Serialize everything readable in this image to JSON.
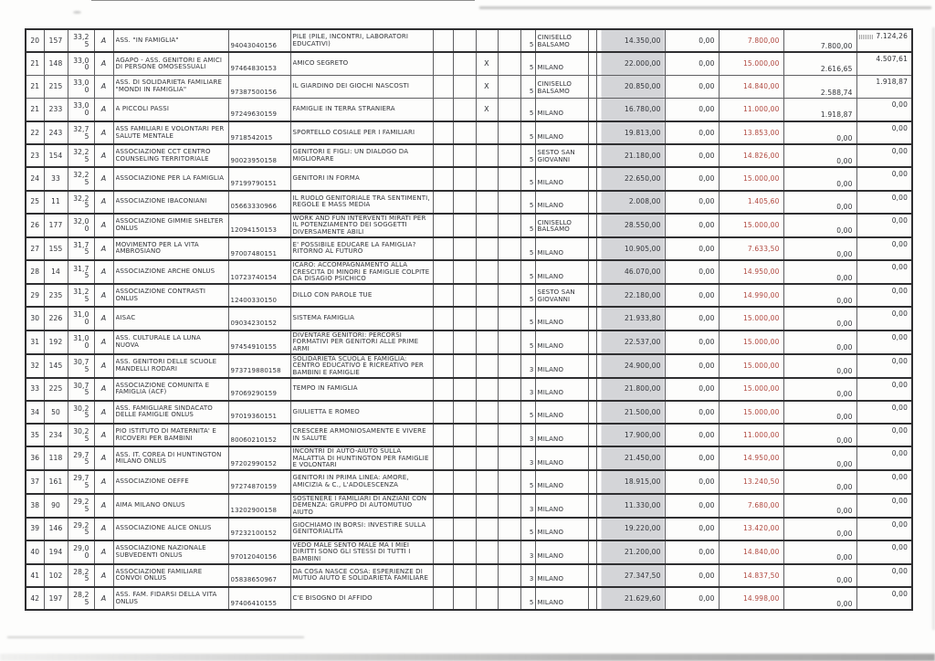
{
  "colors": {
    "grey_fill": "#d4d5d8",
    "red_text": "#b0483f",
    "border": "#5f5f62",
    "thick_border": "#2f2f31",
    "ink": "#2f3136"
  },
  "table": {
    "columns": [
      "rank",
      "id",
      "score",
      "flag",
      "organizzazione",
      "codice_fiscale",
      "progetto",
      "col1",
      "col2",
      "x",
      "col4",
      "n",
      "comune",
      "spacer",
      "importo_1",
      "importo_2",
      "importo_3",
      "importo_4",
      "importo_5"
    ],
    "rows": [
      {
        "rank": "20",
        "id": "157",
        "score": "33,25",
        "flag": "A",
        "org": "ASS. \"IN FAMIGLIA\"",
        "fiscal": "94043040156",
        "project": "PILE (PILE, INCONTRI, LABORATORI EDUCATIVI)",
        "x_mark": "",
        "num": "5",
        "city": "CINISELLO BALSAMO",
        "a_req": "14.350,00",
        "a_zero": "0,00",
        "a_grant": "7.800,00",
        "a_paid": "7.800,00",
        "a_final": "7.124,26",
        "group_start": true,
        "stamp": true
      },
      {
        "rank": "21",
        "id": "148",
        "score": "33,00",
        "flag": "A",
        "org": "AGAPO - ASS. GENITORI E AMICI DI PERSONE OMOSESSUALI",
        "fiscal": "97464830153",
        "project": "AMICO SEGRETO",
        "x_mark": "X",
        "num": "5",
        "city": "MILANO",
        "a_req": "22.000,00",
        "a_zero": "0,00",
        "a_grant": "15.000,00",
        "a_paid": "2.616,65",
        "a_final": "4.507,61",
        "group_start": true,
        "stamp": false
      },
      {
        "rank": "21",
        "id": "215",
        "score": "33,00",
        "flag": "A",
        "org": "ASS. DI SOLIDARIETÀ FAMILIARE \"MONDI IN FAMIGLIA\"",
        "fiscal": "97387500156",
        "project": "IL GIARDINO DEI GIOCHI NASCOSTI",
        "x_mark": "X",
        "num": "5",
        "city": "CINISELLO BALSAMO",
        "a_req": "20.850,00",
        "a_zero": "0,00",
        "a_grant": "14.840,00",
        "a_paid": "2.588,74",
        "a_final": "1.918,87",
        "group_start": false,
        "stamp": false
      },
      {
        "rank": "21",
        "id": "233",
        "score": "33,00",
        "flag": "A",
        "org": "A PICCOLI PASSI",
        "fiscal": "97249630159",
        "project": "FAMIGLIE IN TERRA STRANIERA",
        "x_mark": "X",
        "num": "5",
        "city": "MILANO",
        "a_req": "16.780,00",
        "a_zero": "0,00",
        "a_grant": "11.000,00",
        "a_paid": "1.918,87",
        "a_final": "0,00",
        "group_start": false,
        "stamp": false
      },
      {
        "rank": "22",
        "id": "243",
        "score": "32,75",
        "flag": "A",
        "org": "ASS FAMILIARI E VOLONTARI PER SALUTE MENTALE",
        "fiscal": "9718542015",
        "project": "SPORTELLO COSIALE PER I FAMILIARI",
        "x_mark": "",
        "num": "5",
        "city": "MILANO",
        "a_req": "19.813,00",
        "a_zero": "0,00",
        "a_grant": "13.853,00",
        "a_paid": "0,00",
        "a_final": "0,00",
        "group_start": true,
        "stamp": false
      },
      {
        "rank": "23",
        "id": "154",
        "score": "32,25",
        "flag": "A",
        "org": "ASSOCIAZIONE CCT CENTRO COUNSELING TERRITORIALE",
        "fiscal": "90023950158",
        "project": "GENITORI E FIGLI: UN DIALOGO DA MIGLIORARE",
        "x_mark": "",
        "num": "5",
        "city": "SESTO SAN GIOVANNI",
        "a_req": "21.180,00",
        "a_zero": "0,00",
        "a_grant": "14.826,00",
        "a_paid": "0,00",
        "a_final": "0,00",
        "group_start": true,
        "stamp": false
      },
      {
        "rank": "24",
        "id": "33",
        "score": "32,25",
        "flag": "A",
        "org": "ASSOCIAZIONE PER LA FAMIGLIA",
        "fiscal": "97199790151",
        "project": "GENITORI IN FORMA",
        "x_mark": "",
        "num": "5",
        "city": "MILANO",
        "a_req": "22.650,00",
        "a_zero": "0,00",
        "a_grant": "15.000,00",
        "a_paid": "0,00",
        "a_final": "0,00",
        "group_start": true,
        "stamp": false
      },
      {
        "rank": "25",
        "id": "11",
        "score": "32,25",
        "flag": "A",
        "org": "ASSOCIAZIONE IBACONIANI",
        "fiscal": "05663330966",
        "project": "IL RUOLO GENITORIALE TRA SENTIMENTI, REGOLE E MASS MEDIA",
        "x_mark": "",
        "num": "5",
        "city": "MILANO",
        "a_req": "2.008,00",
        "a_zero": "0,00",
        "a_grant": "1.405,60",
        "a_paid": "0,00",
        "a_final": "0,00",
        "group_start": true,
        "stamp": false
      },
      {
        "rank": "26",
        "id": "177",
        "score": "32,00",
        "flag": "A",
        "org": "ASSOCIAZIONE GIMMIE SHELTER ONLUS",
        "fiscal": "12094150153",
        "project": "WORK AND FUN INTERVENTI MIRATI PER IL POTENZIAMENTO DEI SOGGETTI DIVERSAMENTE ABILI",
        "x_mark": "",
        "num": "5",
        "city": "CINISELLO BALSAMO",
        "a_req": "28.550,00",
        "a_zero": "0,00",
        "a_grant": "15.000,00",
        "a_paid": "0,00",
        "a_final": "0,00",
        "group_start": true,
        "stamp": false
      },
      {
        "rank": "27",
        "id": "155",
        "score": "31,75",
        "flag": "A",
        "org": "MOVIMENTO PER LA VITA AMBROSIANO",
        "fiscal": "97007480151",
        "project": "E' POSSIBILE EDUCARE LA FAMIGLIA? RITORNO AL FUTURO",
        "x_mark": "",
        "num": "5",
        "city": "MILANO",
        "a_req": "10.905,00",
        "a_zero": "0,00",
        "a_grant": "7.633,50",
        "a_paid": "0,00",
        "a_final": "0,00",
        "group_start": true,
        "stamp": false
      },
      {
        "rank": "28",
        "id": "14",
        "score": "31,75",
        "flag": "A",
        "org": "ASSOCIAZIONE ARCHÈ ONLUS",
        "fiscal": "10723740154",
        "project": "ICARO: ACCOMPAGNAMENTO ALLA CRESCITA DI MINORI E FAMIGLIE COLPITE DA DISAGIO PSICHICO",
        "x_mark": "",
        "num": "5",
        "city": "MILANO",
        "a_req": "46.070,00",
        "a_zero": "0,00",
        "a_grant": "14.950,00",
        "a_paid": "0,00",
        "a_final": "0,00",
        "group_start": true,
        "stamp": false
      },
      {
        "rank": "29",
        "id": "235",
        "score": "31,25",
        "flag": "A",
        "org": "ASSOCIAZIONE CONTRASTI ONLUS",
        "fiscal": "12400330150",
        "project": "DILLO CON PAROLE TUE",
        "x_mark": "",
        "num": "5",
        "city": "SESTO SAN GIOVANNI",
        "a_req": "22.180,00",
        "a_zero": "0,00",
        "a_grant": "14.990,00",
        "a_paid": "0,00",
        "a_final": "0,00",
        "group_start": true,
        "stamp": false
      },
      {
        "rank": "30",
        "id": "226",
        "score": "31,00",
        "flag": "A",
        "org": "AISAC",
        "fiscal": "09034230152",
        "project": "SISTEMA FAMIGLIA",
        "x_mark": "",
        "num": "5",
        "city": "MILANO",
        "a_req": "21.933,80",
        "a_zero": "0,00",
        "a_grant": "15.000,00",
        "a_paid": "0,00",
        "a_final": "0,00",
        "group_start": true,
        "stamp": false
      },
      {
        "rank": "31",
        "id": "192",
        "score": "31,00",
        "flag": "A",
        "org": "ASS. CULTURALE LA LUNA NUOVA",
        "fiscal": "97454910155",
        "project": "DIVENTARE GENITORI: PERCORSI FORMATIVI PER GENITORI ALLE PRIME ARMI",
        "x_mark": "",
        "num": "5",
        "city": "MILANO",
        "a_req": "22.537,00",
        "a_zero": "0,00",
        "a_grant": "15.000,00",
        "a_paid": "0,00",
        "a_final": "0,00",
        "group_start": true,
        "stamp": false
      },
      {
        "rank": "32",
        "id": "145",
        "score": "30,75",
        "flag": "A",
        "org": "ASS. GENITORI DELLE SCUOLE MANDELLI RODARI",
        "fiscal": "973719880158",
        "project": "SOLIDARIETÀ SCUOLA E FAMIGLIA: CENTRO EDUCATIVO E RICREATIVO PER BAMBINI E FAMIGLIE",
        "x_mark": "",
        "num": "3",
        "city": "MILANO",
        "a_req": "24.900,00",
        "a_zero": "0,00",
        "a_grant": "15.000,00",
        "a_paid": "0,00",
        "a_final": "0,00",
        "group_start": true,
        "stamp": false
      },
      {
        "rank": "33",
        "id": "225",
        "score": "30,75",
        "flag": "A",
        "org": "ASSOCIAZIONE COMUNITÀ E FAMIGLIA (ACF)",
        "fiscal": "97069290159",
        "project": "TEMPO IN FAMIGLIA",
        "x_mark": "",
        "num": "3",
        "city": "MILANO",
        "a_req": "21.800,00",
        "a_zero": "0,00",
        "a_grant": "15.000,00",
        "a_paid": "0,00",
        "a_final": "0,00",
        "group_start": true,
        "stamp": false
      },
      {
        "rank": "34",
        "id": "50",
        "score": "30,25",
        "flag": "A",
        "org": "ASS. FAMIGLIARE SINDACATO DELLE FAMIGLIE ONLUS",
        "fiscal": "97019360151",
        "project": "GIULIETTA E ROMEO",
        "x_mark": "",
        "num": "5",
        "city": "MILANO",
        "a_req": "21.500,00",
        "a_zero": "0,00",
        "a_grant": "15.000,00",
        "a_paid": "0,00",
        "a_final": "0,00",
        "group_start": true,
        "stamp": false
      },
      {
        "rank": "35",
        "id": "234",
        "score": "30,25",
        "flag": "A",
        "org": "PIO ISTITUTO DI MATERNITA' E RICOVERI PER BAMBINI",
        "fiscal": "80060210152",
        "project": "CRESCERE ARMONIOSAMENTE E VIVERE IN SALUTE",
        "x_mark": "",
        "num": "3",
        "city": "MILANO",
        "a_req": "17.900,00",
        "a_zero": "0,00",
        "a_grant": "11.000,00",
        "a_paid": "0,00",
        "a_final": "0,00",
        "group_start": true,
        "stamp": false
      },
      {
        "rank": "36",
        "id": "118",
        "score": "29,75",
        "flag": "A",
        "org": "ASS. IT. COREA DI HUNTINGTON MILANO ONLUS",
        "fiscal": "97202990152",
        "project": "INCONTRI DI AUTO-AIUTO SULLA MALATTIA DI HUNTINGTON PER FAMIGLIE E VOLONTARI",
        "x_mark": "",
        "num": "3",
        "city": "MILANO",
        "a_req": "21.450,00",
        "a_zero": "0,00",
        "a_grant": "14.950,00",
        "a_paid": "0,00",
        "a_final": "0,00",
        "group_start": true,
        "stamp": false
      },
      {
        "rank": "37",
        "id": "161",
        "score": "29,75",
        "flag": "A",
        "org": "ASSOCIAZIONE OEFFE",
        "fiscal": "97274870159",
        "project": "GENITORI IN PRIMA LINEA: AMORE, AMICIZIA & C., L'ADOLESCENZA",
        "x_mark": "",
        "num": "5",
        "city": "MILANO",
        "a_req": "18.915,00",
        "a_zero": "0,00",
        "a_grant": "13.240,50",
        "a_paid": "0,00",
        "a_final": "0,00",
        "group_start": true,
        "stamp": false
      },
      {
        "rank": "38",
        "id": "90",
        "score": "29,25",
        "flag": "A",
        "org": "AIMA MILANO ONLUS",
        "fiscal": "13202900158",
        "project": "SOSTENERE I FAMILIARI DI ANZIANI CON DEMENZA: GRUPPO DI AUTOMUTUO AIUTO",
        "x_mark": "",
        "num": "3",
        "city": "MILANO",
        "a_req": "11.330,00",
        "a_zero": "0,00",
        "a_grant": "7.680,00",
        "a_paid": "0,00",
        "a_final": "0,00",
        "group_start": true,
        "stamp": false
      },
      {
        "rank": "39",
        "id": "146",
        "score": "29,25",
        "flag": "A",
        "org": "ASSOCIAZIONE ALICE ONLUS",
        "fiscal": "97232100152",
        "project": "GIOCHIAMO IN BORSI: INVESTIRE SULLA GENITORIALITÀ",
        "x_mark": "",
        "num": "5",
        "city": "MILANO",
        "a_req": "19.220,00",
        "a_zero": "0,00",
        "a_grant": "13.420,00",
        "a_paid": "0,00",
        "a_final": "0,00",
        "group_start": true,
        "stamp": false
      },
      {
        "rank": "40",
        "id": "194",
        "score": "29,00",
        "flag": "A",
        "org": "ASSOCIAZIONE NAZIONALE SUBVEDENTI ONLUS",
        "fiscal": "97012040156",
        "project": "VEDO MALE SENTO MALE MA I MIEI DIRITTI SONO GLI STESSI DI TUTTI I BAMBINI",
        "x_mark": "",
        "num": "3",
        "city": "MILANO",
        "a_req": "21.200,00",
        "a_zero": "0,00",
        "a_grant": "14.840,00",
        "a_paid": "0,00",
        "a_final": "0,00",
        "group_start": true,
        "stamp": false
      },
      {
        "rank": "41",
        "id": "102",
        "score": "28,25",
        "flag": "A",
        "org": "ASSOCIAZIONE FAMILIARE CONVOI ONLUS",
        "fiscal": "05838650967",
        "project": "DA COSA NASCE COSA: ESPERIENZE DI MUTUO AIUTO E SOLIDARIETÀ FAMILIARE",
        "x_mark": "",
        "num": "3",
        "city": "MILANO",
        "a_req": "27.347,50",
        "a_zero": "0,00",
        "a_grant": "14.837,50",
        "a_paid": "0,00",
        "a_final": "0,00",
        "group_start": true,
        "stamp": false
      },
      {
        "rank": "42",
        "id": "197",
        "score": "28,25",
        "flag": "A",
        "org": "ASS. FAM. FIDARSI DELLA VITA ONLUS",
        "fiscal": "97406410155",
        "project": "C'È BISOGNO DI AFFIDO",
        "x_mark": "",
        "num": "5",
        "city": "MILANO",
        "a_req": "21.629,60",
        "a_zero": "0,00",
        "a_grant": "14.998,00",
        "a_paid": "0,00",
        "a_final": "0,00",
        "group_start": true,
        "stamp": false
      }
    ]
  }
}
